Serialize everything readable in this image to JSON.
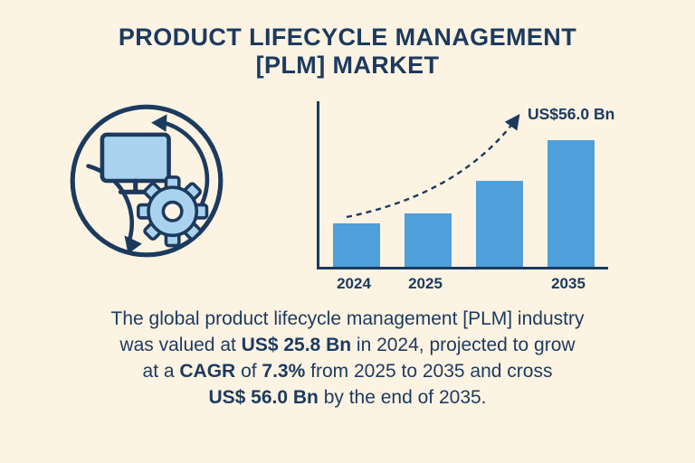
{
  "title": {
    "line1": "PRODUCT LIFECYCLE MANAGEMENT",
    "line2": "[PLM] MARKET"
  },
  "colors": {
    "background": "#fcf3e3",
    "navy": "#1c3a5e",
    "bar_blue": "#4f9fdb",
    "light_blue": "#a9d2ee"
  },
  "chart_data": {
    "type": "bar",
    "categories": [
      "2024",
      "2025",
      "",
      "2035"
    ],
    "values": [
      25.8,
      29.5,
      41.0,
      56.0
    ],
    "unit": "US$ Bn",
    "annotation": "US$56.0 Bn",
    "ylim": [
      10,
      70
    ],
    "grid": false,
    "legend": false,
    "title": "",
    "xlabel": "",
    "ylabel": ""
  },
  "description": {
    "l1": "The global product lifecycle management [PLM] industry",
    "l2a": "was valued at ",
    "l2b": "US$ 25.8 Bn",
    "l2c": " in 2024, projected to grow",
    "l3a": "at a ",
    "l3b": "CAGR",
    "l3c": " of ",
    "l3d": "7.3%",
    "l3e": " from 2025 to 2035 and cross",
    "l4a": "US$ 56.0 Bn",
    "l4b": " by the end of 2035."
  }
}
